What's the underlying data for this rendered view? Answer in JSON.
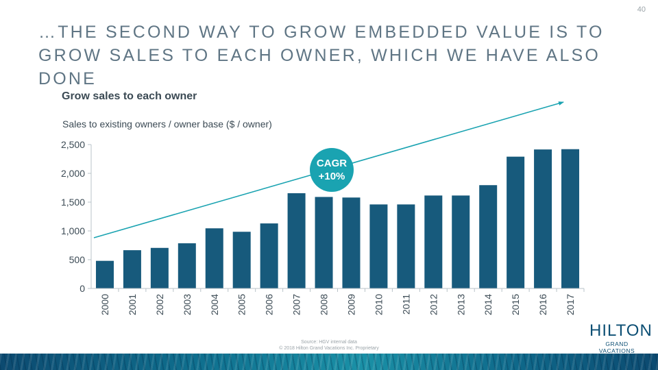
{
  "slide": {
    "page_number": "40",
    "title": "…The second way to grow embedded value is to grow sales to each owner, which we have also done",
    "footer_source": "Source: HGV internal data",
    "footer_copyright": "© 2018 Hilton Grand Vacations Inc. Proprietary",
    "brand_name": "HILTON",
    "brand_subtitle": "GRAND VACATIONS"
  },
  "colors": {
    "bar": "#175a7c",
    "trend": "#1aa3b1",
    "axis": "#b9c3c8",
    "text": "#3b4a54"
  },
  "chart_data": {
    "type": "bar",
    "title": "Grow sales to each owner",
    "subtitle": "Sales to existing owners / owner base ($ / owner)",
    "xlabel": "",
    "ylabel": "",
    "categories": [
      "2000",
      "2001",
      "2002",
      "2003",
      "2004",
      "2005",
      "2006",
      "2007",
      "2008",
      "2009",
      "2010",
      "2011",
      "2012",
      "2013",
      "2014",
      "2015",
      "2016",
      "2017"
    ],
    "values": [
      480,
      665,
      705,
      785,
      1045,
      985,
      1130,
      1655,
      1590,
      1580,
      1460,
      1460,
      1615,
      1615,
      1795,
      2290,
      2415,
      2420
    ],
    "ylim": [
      0,
      2500
    ],
    "yticks": [
      0,
      500,
      1000,
      1500,
      2000,
      2500
    ],
    "ytick_labels": [
      "0",
      "500",
      "1,000",
      "1,500",
      "2,000",
      "2,500"
    ],
    "grid": false,
    "annotation": {
      "line1": "CAGR",
      "line2": "+10%"
    },
    "trend_arrow": true
  }
}
